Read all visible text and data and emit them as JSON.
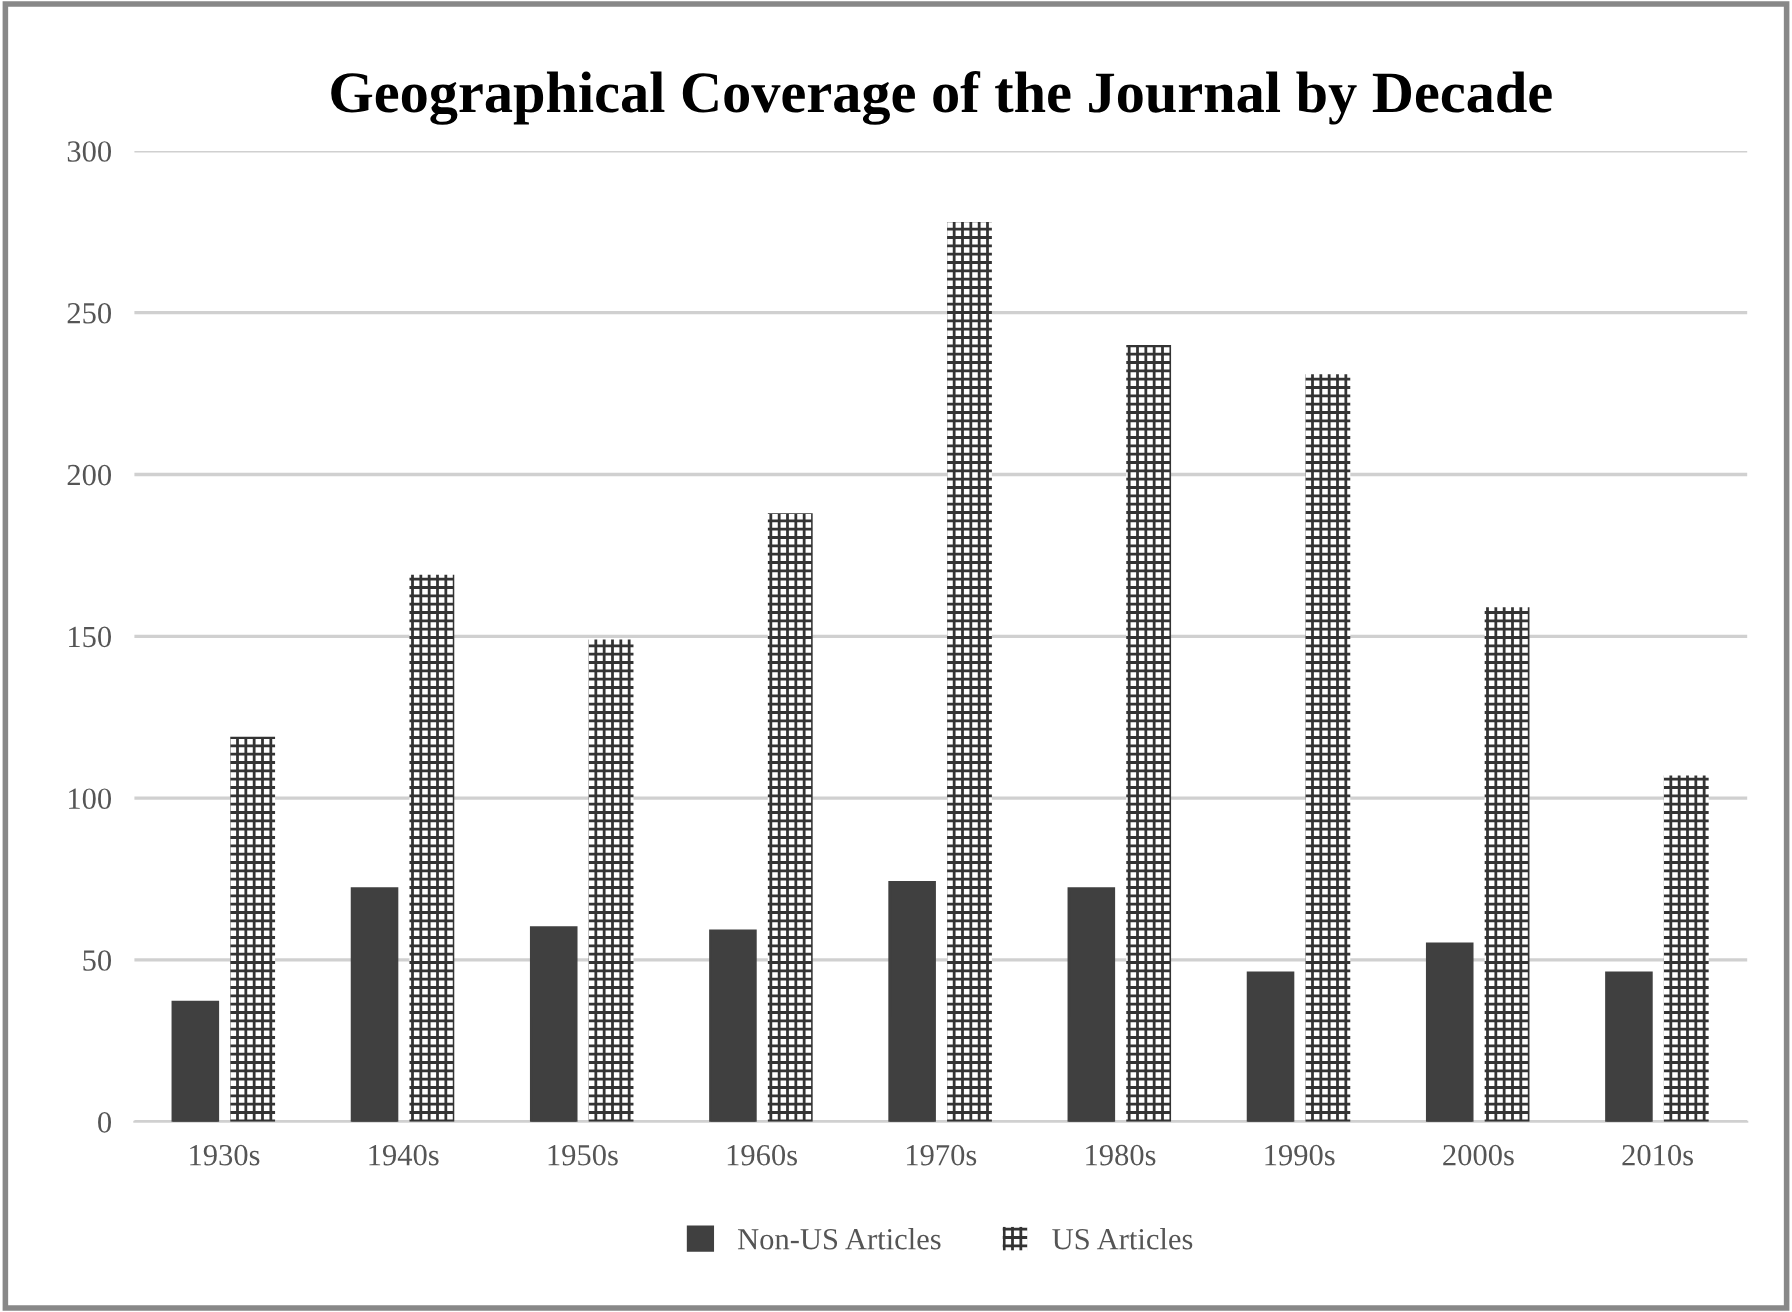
{
  "chart_data": {
    "type": "bar",
    "title": "Geographical Coverage of the Journal by Decade",
    "categories": [
      "1930s",
      "1940s",
      "1950s",
      "1960s",
      "1970s",
      "1980s",
      "1990s",
      "2000s",
      "2010s"
    ],
    "series": [
      {
        "name": "Non-US Articles",
        "color": "#404040",
        "values": [
          37,
          72,
          60,
          59,
          74,
          72,
          46,
          55,
          46
        ]
      },
      {
        "name": "US Articles",
        "color": "#333333",
        "values": [
          119,
          169,
          149,
          188,
          278,
          240,
          231,
          159,
          107
        ]
      }
    ],
    "ylim": [
      0,
      300
    ],
    "yticks": [
      0,
      50,
      100,
      150,
      200,
      250,
      300
    ],
    "grid": "y",
    "legend": "bottom"
  }
}
